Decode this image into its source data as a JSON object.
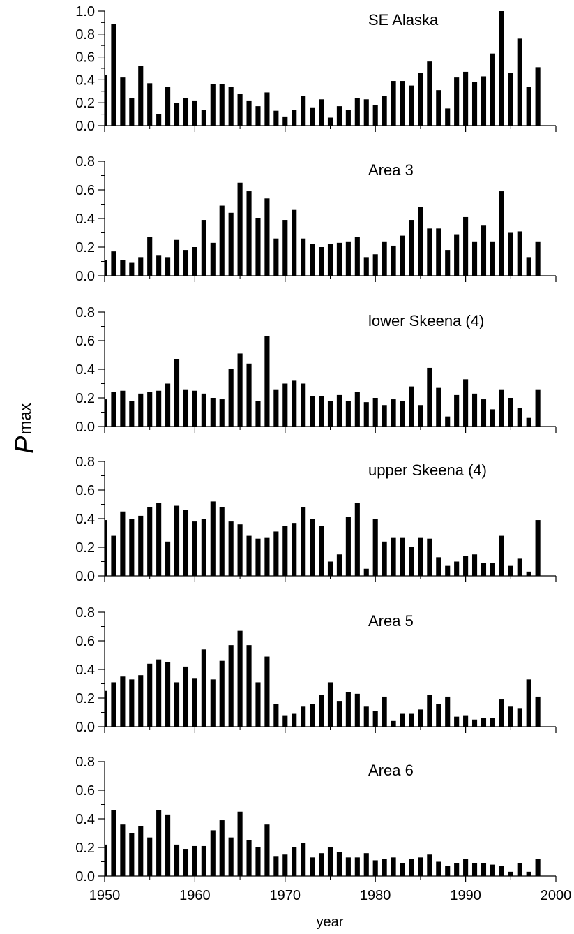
{
  "chart_data": {
    "type": "bar",
    "xlabel": "year",
    "ylabel_main": "P",
    "ylabel_sub": "max",
    "xlim": [
      1950,
      2000
    ],
    "xticks": [
      1950,
      1960,
      1970,
      1980,
      1990,
      2000
    ],
    "years": [
      1950,
      1951,
      1952,
      1953,
      1954,
      1955,
      1956,
      1957,
      1958,
      1959,
      1960,
      1961,
      1962,
      1963,
      1964,
      1965,
      1966,
      1967,
      1968,
      1969,
      1970,
      1971,
      1972,
      1973,
      1974,
      1975,
      1976,
      1977,
      1978,
      1979,
      1980,
      1981,
      1982,
      1983,
      1984,
      1985,
      1986,
      1987,
      1988,
      1989,
      1990,
      1991,
      1992,
      1993,
      1994,
      1995,
      1996,
      1997,
      1998
    ],
    "panels": [
      {
        "label": "SE Alaska",
        "ylim": [
          0,
          1.0
        ],
        "yticks": [
          "0.0",
          "0.2",
          "0.4",
          "0.6",
          "0.8",
          "1.0"
        ],
        "values": [
          0.44,
          0.89,
          0.42,
          0.24,
          0.52,
          0.37,
          0.1,
          0.34,
          0.2,
          0.24,
          0.22,
          0.14,
          0.36,
          0.36,
          0.34,
          0.28,
          0.22,
          0.17,
          0.29,
          0.13,
          0.08,
          0.14,
          0.26,
          0.16,
          0.23,
          0.07,
          0.17,
          0.14,
          0.24,
          0.23,
          0.18,
          0.26,
          0.39,
          0.39,
          0.35,
          0.46,
          0.56,
          0.31,
          0.15,
          0.42,
          0.47,
          0.38,
          0.43,
          0.63,
          1.0,
          0.46,
          0.76,
          0.34,
          0.51
        ]
      },
      {
        "label": "Area 3",
        "ylim": [
          0,
          0.8
        ],
        "yticks": [
          "0.0",
          "0.2",
          "0.4",
          "0.6",
          "0.8"
        ],
        "values": [
          0.11,
          0.17,
          0.11,
          0.09,
          0.13,
          0.27,
          0.14,
          0.13,
          0.25,
          0.18,
          0.2,
          0.39,
          0.23,
          0.49,
          0.44,
          0.65,
          0.59,
          0.4,
          0.54,
          0.26,
          0.39,
          0.46,
          0.26,
          0.22,
          0.2,
          0.22,
          0.23,
          0.24,
          0.27,
          0.13,
          0.15,
          0.24,
          0.21,
          0.28,
          0.39,
          0.48,
          0.33,
          0.33,
          0.18,
          0.29,
          0.41,
          0.24,
          0.35,
          0.24,
          0.59,
          0.3,
          0.31,
          0.13,
          0.24
        ]
      },
      {
        "label": "lower Skeena (4)",
        "ylim": [
          0,
          0.8
        ],
        "yticks": [
          "0.0",
          "0.2",
          "0.4",
          "0.6",
          "0.8"
        ],
        "values": [
          0.19,
          0.24,
          0.25,
          0.18,
          0.23,
          0.24,
          0.25,
          0.3,
          0.47,
          0.26,
          0.25,
          0.23,
          0.2,
          0.19,
          0.4,
          0.51,
          0.44,
          0.18,
          0.63,
          0.26,
          0.3,
          0.32,
          0.3,
          0.21,
          0.21,
          0.18,
          0.22,
          0.18,
          0.24,
          0.17,
          0.2,
          0.15,
          0.19,
          0.18,
          0.28,
          0.15,
          0.41,
          0.27,
          0.07,
          0.22,
          0.33,
          0.23,
          0.19,
          0.12,
          0.26,
          0.2,
          0.13,
          0.06,
          0.26
        ]
      },
      {
        "label": "upper Skeena (4)",
        "ylim": [
          0,
          0.8
        ],
        "yticks": [
          "0.0",
          "0.2",
          "0.4",
          "0.6",
          "0.8"
        ],
        "values": [
          0.39,
          0.28,
          0.45,
          0.4,
          0.42,
          0.48,
          0.51,
          0.24,
          0.49,
          0.46,
          0.38,
          0.4,
          0.52,
          0.48,
          0.38,
          0.36,
          0.28,
          0.26,
          0.27,
          0.31,
          0.35,
          0.37,
          0.48,
          0.4,
          0.35,
          0.1,
          0.15,
          0.41,
          0.51,
          0.05,
          0.4,
          0.24,
          0.27,
          0.27,
          0.2,
          0.27,
          0.26,
          0.13,
          0.07,
          0.1,
          0.14,
          0.15,
          0.09,
          0.09,
          0.28,
          0.07,
          0.12,
          0.03,
          0.39
        ]
      },
      {
        "label": "Area 5",
        "ylim": [
          0,
          0.8
        ],
        "yticks": [
          "0.0",
          "0.2",
          "0.4",
          "0.6",
          "0.8"
        ],
        "values": [
          0.25,
          0.31,
          0.35,
          0.33,
          0.36,
          0.44,
          0.47,
          0.45,
          0.31,
          0.42,
          0.34,
          0.54,
          0.33,
          0.46,
          0.57,
          0.67,
          0.57,
          0.31,
          0.49,
          0.16,
          0.08,
          0.09,
          0.14,
          0.16,
          0.22,
          0.31,
          0.18,
          0.24,
          0.23,
          0.14,
          0.11,
          0.21,
          0.04,
          0.09,
          0.09,
          0.12,
          0.22,
          0.16,
          0.21,
          0.07,
          0.08,
          0.05,
          0.06,
          0.06,
          0.19,
          0.14,
          0.13,
          0.33,
          0.21
        ]
      },
      {
        "label": "Area 6",
        "ylim": [
          0,
          0.8
        ],
        "yticks": [
          "0.0",
          "0.2",
          "0.4",
          "0.6",
          "0.8"
        ],
        "values": [
          0.22,
          0.46,
          0.36,
          0.3,
          0.35,
          0.27,
          0.46,
          0.43,
          0.22,
          0.19,
          0.21,
          0.21,
          0.32,
          0.39,
          0.27,
          0.45,
          0.25,
          0.2,
          0.36,
          0.14,
          0.15,
          0.2,
          0.23,
          0.13,
          0.16,
          0.2,
          0.17,
          0.13,
          0.13,
          0.16,
          0.11,
          0.12,
          0.13,
          0.09,
          0.12,
          0.13,
          0.15,
          0.1,
          0.07,
          0.09,
          0.12,
          0.09,
          0.09,
          0.08,
          0.07,
          0.03,
          0.09,
          0.03,
          0.12
        ]
      }
    ]
  }
}
